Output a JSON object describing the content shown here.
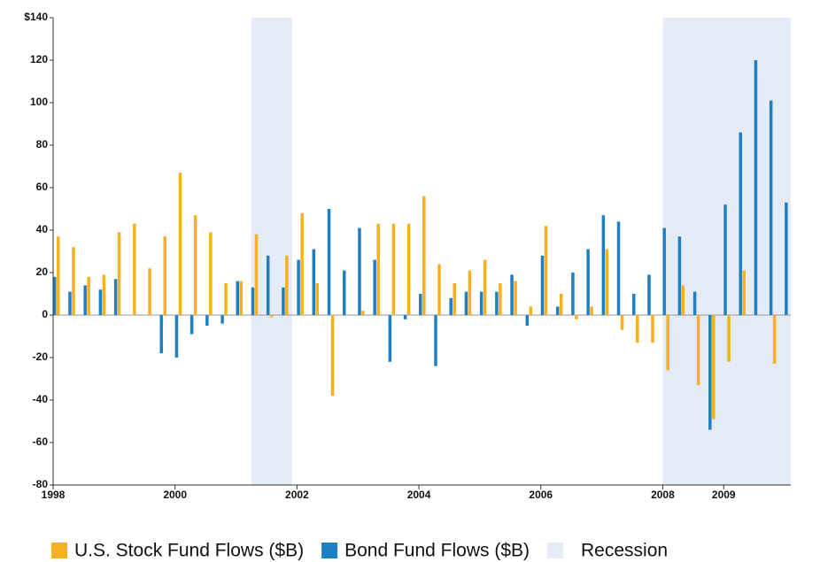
{
  "chart_data": {
    "type": "bar",
    "x": [
      1998,
      1998.25,
      1998.5,
      1998.75,
      1999,
      1999.25,
      1999.5,
      1999.75,
      2000,
      2000.25,
      2000.5,
      2000.75,
      2001,
      2001.25,
      2001.5,
      2001.75,
      2002,
      2002.25,
      2002.5,
      2002.75,
      2003,
      2003.25,
      2003.5,
      2003.75,
      2004,
      2004.25,
      2004.5,
      2004.75,
      2005,
      2005.25,
      2005.5,
      2005.75,
      2006,
      2006.25,
      2006.5,
      2006.75,
      2007,
      2007.25,
      2007.5,
      2007.75,
      2008,
      2008.25,
      2008.5,
      2008.75,
      2009,
      2009.25,
      2009.5,
      2009.75,
      2010
    ],
    "series": [
      {
        "name": "Bond Fund Flows ($B)",
        "color": "#1f7fc4",
        "values": [
          18,
          11,
          14,
          12,
          17,
          0,
          0,
          -18,
          -20,
          -9,
          -5,
          -4,
          16,
          13,
          28,
          13,
          26,
          31,
          50,
          21,
          41,
          26,
          -22,
          -2,
          10,
          -24,
          8,
          11,
          11,
          11,
          19,
          -5,
          28,
          4,
          20,
          31,
          47,
          44,
          10,
          19,
          41,
          37,
          11,
          -54,
          52,
          86,
          120,
          101,
          53
        ]
      },
      {
        "name": "U.S. Stock Fund Flows ($B)",
        "color": "#f5b120",
        "values": [
          37,
          32,
          18,
          19,
          39,
          43,
          22,
          37,
          67,
          47,
          39,
          15,
          16,
          38,
          -1,
          28,
          48,
          15,
          -38,
          0,
          2,
          43,
          43,
          43,
          56,
          24,
          15,
          21,
          26,
          15,
          16,
          4,
          42,
          10,
          -2,
          4,
          31,
          -7,
          -13,
          -13,
          -26,
          14,
          -33,
          -49,
          -22,
          21,
          0,
          -23,
          0
        ]
      }
    ],
    "legend_order": [
      1,
      0
    ],
    "recession_label": "Recession",
    "recession_color": "#e6ecf7",
    "recessions": [
      [
        2001.25,
        2001.92
      ],
      [
        2008,
        2010.1
      ]
    ],
    "xlim": [
      1998,
      2010.1
    ],
    "xticks": [
      1998,
      2000,
      2002,
      2004,
      2006,
      2008,
      2009
    ],
    "ylim": [
      -80,
      140
    ],
    "yticks": [
      -80,
      -60,
      -40,
      -20,
      0,
      20,
      40,
      60,
      80,
      100,
      120,
      {
        "value": 140,
        "label": "$140"
      }
    ],
    "grid": false
  }
}
